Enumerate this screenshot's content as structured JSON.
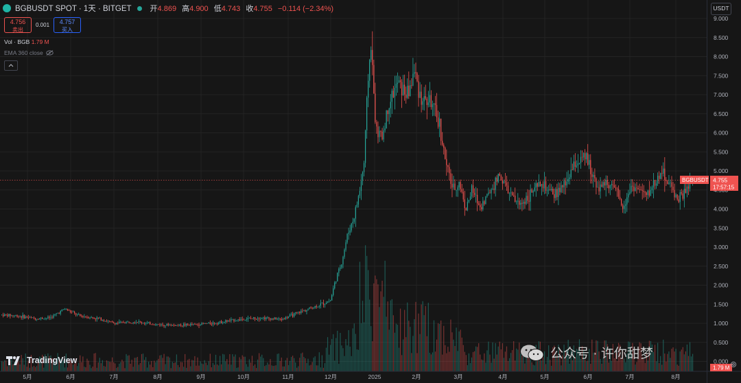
{
  "header": {
    "symbol": "BGBUSDT SPOT · 1天 · BITGET",
    "ohlc": [
      {
        "k": "开",
        "v": "4.869"
      },
      {
        "k": "高",
        "v": "4.900"
      },
      {
        "k": "低",
        "v": "4.743"
      },
      {
        "k": "收",
        "v": "4.755"
      }
    ],
    "change": "−0.114 (−2.34%)"
  },
  "trade": {
    "sell_price": "4.756",
    "sell_label": "卖出",
    "spread": "0.001",
    "buy_price": "4.757",
    "buy_label": "买入"
  },
  "volume_legend": {
    "label": "Vol · BGB",
    "value": "1.79 M"
  },
  "ema_legend": {
    "label": "EMA 360 close"
  },
  "currency_button": "USDT",
  "price_label": {
    "symbol": "BGBUSDT",
    "price": "4.755",
    "countdown": "17:57:15"
  },
  "volume_label": "1.79 M",
  "branding": "TradingView",
  "watermark": "公众号 · 许你甜梦",
  "colors": {
    "up": "#26a69a",
    "down": "#ef5350",
    "bg": "#161616",
    "grid": "#232323"
  },
  "chart_data": {
    "type": "candlestick",
    "y_ticks": [
      "9.000",
      "8.500",
      "8.000",
      "7.500",
      "7.000",
      "6.500",
      "6.000",
      "5.500",
      "5.000",
      "4.500",
      "4.000",
      "3.500",
      "3.000",
      "2.500",
      "2.000",
      "1.500",
      "1.000",
      "0.500",
      "0.000"
    ],
    "x_ticks": [
      "5月",
      "6月",
      "7月",
      "8月",
      "9月",
      "10月",
      "11月",
      "12月",
      "2025",
      "2月",
      "3月",
      "4月",
      "5月",
      "6月",
      "7月",
      "8月"
    ],
    "ylim": [
      0,
      9
    ],
    "last_price": 4.755,
    "close_path": [
      {
        "d": 0,
        "p": 1.22
      },
      {
        "d": 10,
        "p": 1.2
      },
      {
        "d": 25,
        "p": 1.12
      },
      {
        "d": 35,
        "p": 1.15
      },
      {
        "d": 45,
        "p": 1.38
      },
      {
        "d": 55,
        "p": 1.2
      },
      {
        "d": 70,
        "p": 1.12
      },
      {
        "d": 80,
        "p": 1.0
      },
      {
        "d": 95,
        "p": 1.05
      },
      {
        "d": 110,
        "p": 0.97
      },
      {
        "d": 125,
        "p": 0.95
      },
      {
        "d": 140,
        "p": 0.97
      },
      {
        "d": 155,
        "p": 1.02
      },
      {
        "d": 165,
        "p": 1.08
      },
      {
        "d": 185,
        "p": 1.15
      },
      {
        "d": 200,
        "p": 1.1
      },
      {
        "d": 212,
        "p": 1.28
      },
      {
        "d": 225,
        "p": 1.45
      },
      {
        "d": 235,
        "p": 1.6
      },
      {
        "d": 238,
        "p": 2.05
      },
      {
        "d": 243,
        "p": 2.6
      },
      {
        "d": 247,
        "p": 3.3
      },
      {
        "d": 252,
        "p": 3.8
      },
      {
        "d": 256,
        "p": 4.5
      },
      {
        "d": 259,
        "p": 5.2
      },
      {
        "d": 262,
        "p": 7.5
      },
      {
        "d": 264,
        "p": 8.3
      },
      {
        "d": 266,
        "p": 7.0
      },
      {
        "d": 268,
        "p": 6.0
      },
      {
        "d": 272,
        "p": 5.9
      },
      {
        "d": 277,
        "p": 6.8
      },
      {
        "d": 283,
        "p": 7.3
      },
      {
        "d": 290,
        "p": 7.0
      },
      {
        "d": 295,
        "p": 7.6
      },
      {
        "d": 300,
        "p": 6.9
      },
      {
        "d": 307,
        "p": 6.8
      },
      {
        "d": 313,
        "p": 6.2
      },
      {
        "d": 318,
        "p": 5.1
      },
      {
        "d": 323,
        "p": 4.5
      },
      {
        "d": 327,
        "p": 4.7
      },
      {
        "d": 332,
        "p": 4.0
      },
      {
        "d": 336,
        "p": 4.5
      },
      {
        "d": 342,
        "p": 4.05
      },
      {
        "d": 348,
        "p": 4.4
      },
      {
        "d": 356,
        "p": 4.9
      },
      {
        "d": 363,
        "p": 4.4
      },
      {
        "d": 370,
        "p": 4.1
      },
      {
        "d": 378,
        "p": 4.4
      },
      {
        "d": 386,
        "p": 4.65
      },
      {
        "d": 394,
        "p": 4.35
      },
      {
        "d": 402,
        "p": 4.6
      },
      {
        "d": 410,
        "p": 5.2
      },
      {
        "d": 418,
        "p": 5.35
      },
      {
        "d": 422,
        "p": 4.95
      },
      {
        "d": 427,
        "p": 4.55
      },
      {
        "d": 433,
        "p": 4.7
      },
      {
        "d": 439,
        "p": 4.45
      },
      {
        "d": 444,
        "p": 4.05
      },
      {
        "d": 450,
        "p": 4.6
      },
      {
        "d": 456,
        "p": 4.5
      },
      {
        "d": 461,
        "p": 4.35
      },
      {
        "d": 467,
        "p": 4.7
      },
      {
        "d": 472,
        "p": 5.0
      },
      {
        "d": 478,
        "p": 4.6
      },
      {
        "d": 484,
        "p": 4.25
      },
      {
        "d": 490,
        "p": 4.5
      },
      {
        "d": 494,
        "p": 4.76
      }
    ]
  }
}
